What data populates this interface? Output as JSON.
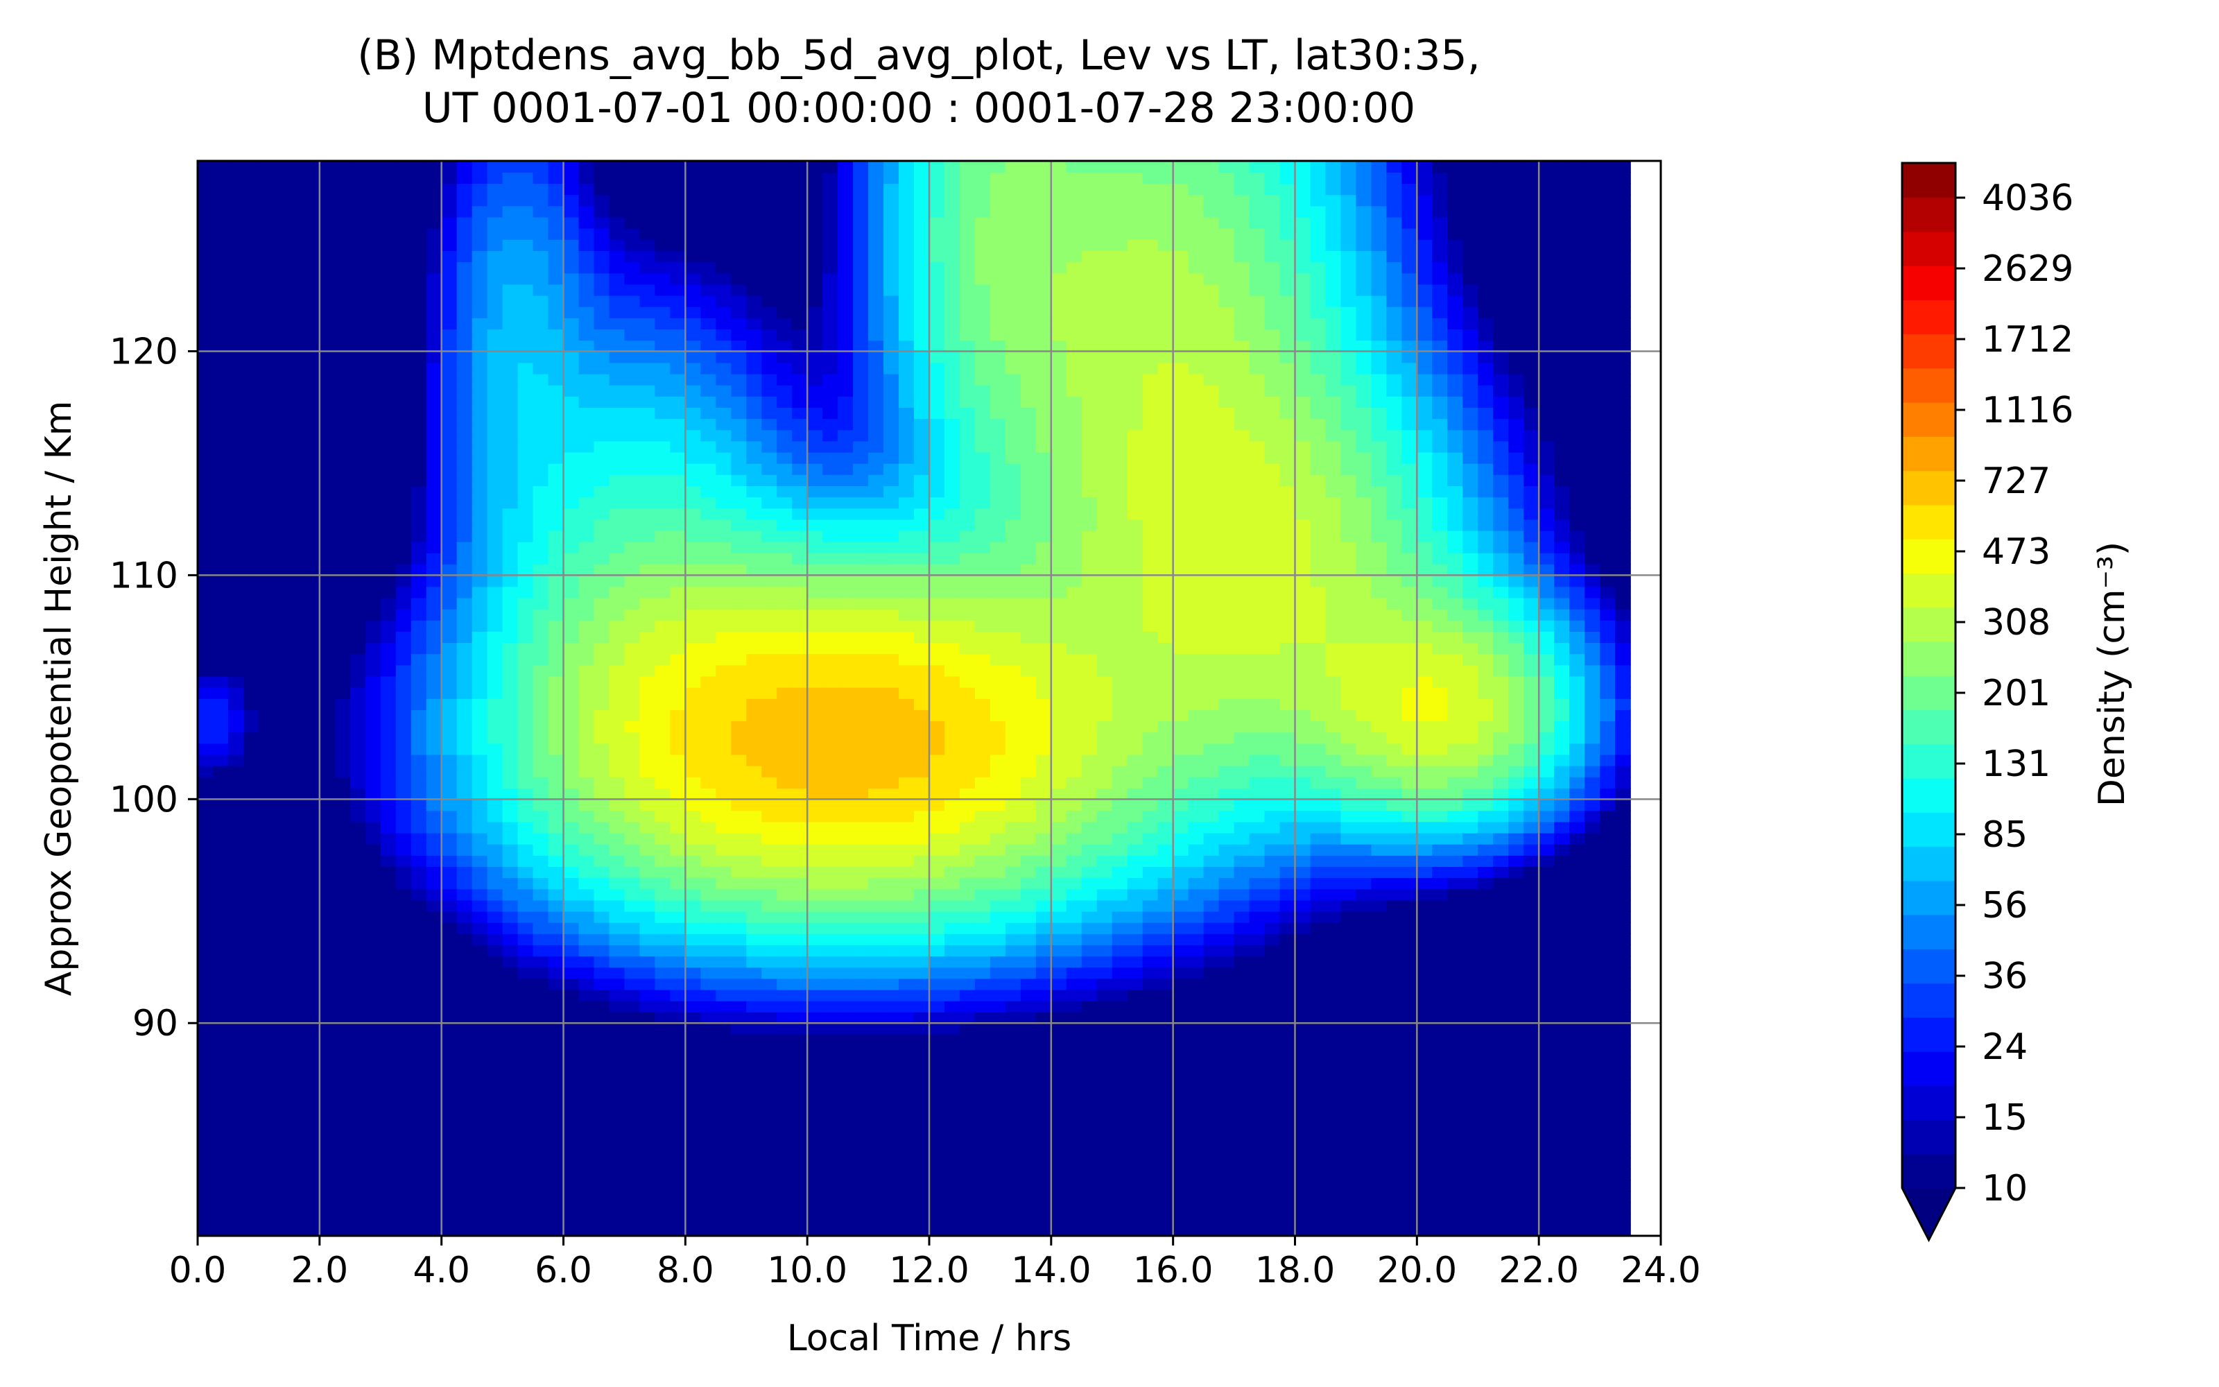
{
  "chart_data": {
    "type": "contourf",
    "title_line1": "(B) Mptdens_avg_bb_5d_avg_plot, Lev vs LT, lat30:35,",
    "title_line2": "UT 0001-07-01 00:00:00 : 0001-07-28 23:00:00",
    "xlabel": "Local Time / hrs",
    "ylabel": "Approx Geopotential Height / Km",
    "colorbar_label": "Density (cm⁻³)",
    "xlim": [
      0,
      24
    ],
    "ylim": [
      80.5,
      128.5
    ],
    "xticks": [
      0,
      2,
      4,
      6,
      8,
      10,
      12,
      14,
      16,
      18,
      20,
      22,
      24
    ],
    "xtick_labels": [
      "0.0",
      "2.0",
      "4.0",
      "6.0",
      "8.0",
      "10.0",
      "12.0",
      "14.0",
      "16.0",
      "18.0",
      "20.0",
      "22.0",
      "24.0"
    ],
    "yticks": [
      90,
      100,
      110,
      120
    ],
    "ytick_labels": [
      "90",
      "110",
      "120"
    ],
    "ytick_labels_all": [
      "90",
      "100",
      "110",
      "120"
    ],
    "data_x_max": 23.5,
    "grid": true,
    "colorbar_ticks": [
      "10",
      "15",
      "24",
      "36",
      "56",
      "85",
      "131",
      "201",
      "308",
      "473",
      "727",
      "1116",
      "1712",
      "2629",
      "4036"
    ],
    "colorbar_scale": "log",
    "colorbar_extend": "min",
    "colormap": "jet",
    "colorbar_min": 10,
    "colorbar_max": 5000,
    "blobs": [
      {
        "x": 10.6,
        "y": 102.6,
        "sx": 2.9,
        "sy": 4.6,
        "amp": 720
      },
      {
        "x": 15.8,
        "y": 120.0,
        "sx": 1.9,
        "sy": 9.5,
        "amp": 300
      },
      {
        "x": 20.4,
        "y": 104.0,
        "sx": 1.3,
        "sy": 3.0,
        "amp": 360
      },
      {
        "x": 17.8,
        "y": 110.0,
        "sx": 1.9,
        "sy": 5.5,
        "amp": 260
      },
      {
        "x": 13.0,
        "y": 126.0,
        "sx": 1.1,
        "sy": 7.0,
        "amp": 150
      },
      {
        "x": 7.3,
        "y": 110.5,
        "sx": 1.5,
        "sy": 6.5,
        "amp": 130
      },
      {
        "x": 5.2,
        "y": 121.0,
        "sx": 0.8,
        "sy": 6.5,
        "amp": 60
      },
      {
        "x": 0.2,
        "y": 103.5,
        "sx": 0.5,
        "sy": 1.8,
        "amp": 25
      }
    ]
  }
}
